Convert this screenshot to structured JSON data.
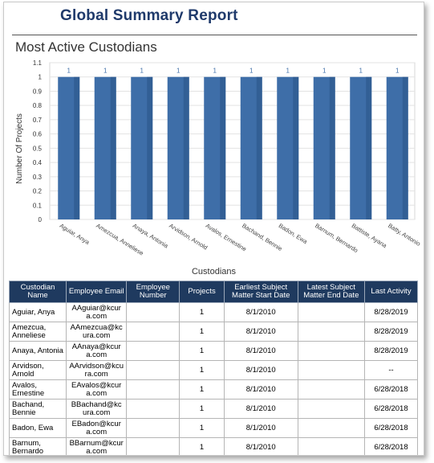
{
  "report": {
    "title": "Global Summary Report",
    "section_title": "Most Active Custodians"
  },
  "chart_data": {
    "type": "bar",
    "categories": [
      "Aguiar, Anya",
      "Amezcua, Anneliese",
      "Anaya, Antonia",
      "Arvidson, Arnold",
      "Avalos, Ernestine",
      "Bachand, Bennie",
      "Badon, Ewa",
      "Barnum, Bernardo",
      "Battiste, Ayana",
      "Batty, Antonio"
    ],
    "values": [
      1,
      1,
      1,
      1,
      1,
      1,
      1,
      1,
      1,
      1
    ],
    "data_labels": [
      "1",
      "1",
      "1",
      "1",
      "1",
      "1",
      "1",
      "1",
      "1",
      "1"
    ],
    "ylabel": "Number Of Projects",
    "xlabel": "Custodians",
    "ylim": [
      0,
      1.1
    ],
    "yticks": [
      "0",
      "0.1",
      "0.2",
      "0.3",
      "0.4",
      "0.5",
      "0.6",
      "0.7",
      "0.8",
      "0.9",
      "1",
      "1.1"
    ],
    "ytick_values": [
      0,
      0.1,
      0.2,
      0.3,
      0.4,
      0.5,
      0.6,
      0.7,
      0.8,
      0.9,
      1,
      1.1
    ],
    "grid": true,
    "bar_color": "#3e6ea8"
  },
  "table": {
    "headers": [
      "Custodian Name",
      "Employee Email",
      "Employee Number",
      "Projects",
      "Earliest Subject Matter Start Date",
      "Latest Subject Matter End Date",
      "Last Activity"
    ],
    "rows": [
      {
        "name": "Aguiar, Anya",
        "email": "AAguiar@kcura.com",
        "number": "",
        "projects": "1",
        "start": "8/1/2010",
        "end": "",
        "last": "8/28/2019"
      },
      {
        "name": "Amezcua, Anneliese",
        "email": "AAmezcua@kcura.com",
        "number": "",
        "projects": "1",
        "start": "8/1/2010",
        "end": "",
        "last": "8/28/2019"
      },
      {
        "name": "Anaya, Antonia",
        "email": "AAnaya@kcura.com",
        "number": "",
        "projects": "1",
        "start": "8/1/2010",
        "end": "",
        "last": "8/28/2019"
      },
      {
        "name": "Arvidson, Arnold",
        "email": "AArvidson@kcura.com",
        "number": "",
        "projects": "1",
        "start": "8/1/2010",
        "end": "",
        "last": "--"
      },
      {
        "name": "Avalos, Ernestine",
        "email": "EAvalos@kcura.com",
        "number": "",
        "projects": "1",
        "start": "8/1/2010",
        "end": "",
        "last": "6/28/2018"
      },
      {
        "name": "Bachand, Bennie",
        "email": "BBachand@kcura.com",
        "number": "",
        "projects": "1",
        "start": "8/1/2010",
        "end": "",
        "last": "6/28/2018"
      },
      {
        "name": "Badon, Ewa",
        "email": "EBadon@kcura.com",
        "number": "",
        "projects": "1",
        "start": "8/1/2010",
        "end": "",
        "last": "6/28/2018"
      },
      {
        "name": "Barnum, Bernardo",
        "email": "BBarnum@kcura.com",
        "number": "",
        "projects": "1",
        "start": "8/1/2010",
        "end": "",
        "last": "6/28/2018"
      }
    ]
  }
}
